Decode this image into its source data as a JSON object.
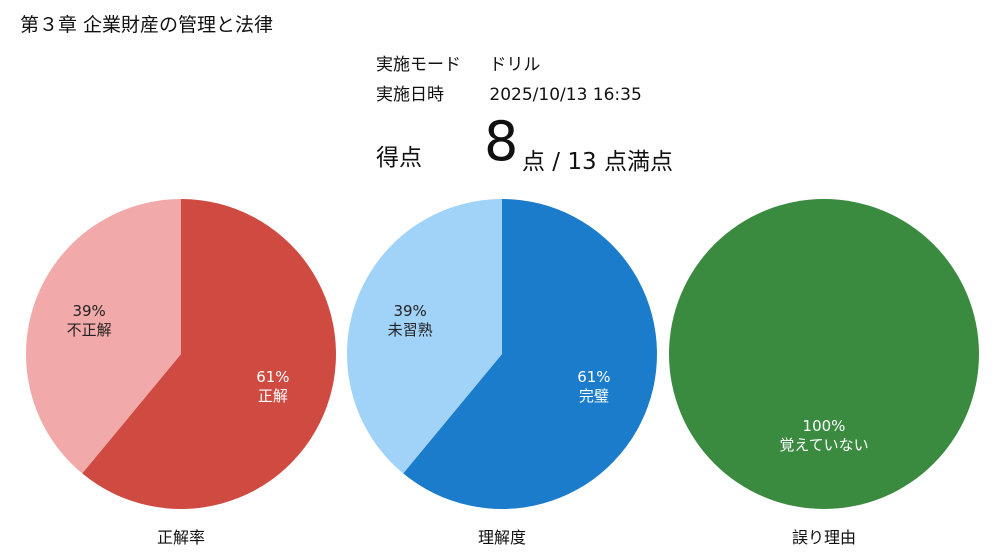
{
  "header": {
    "chapter_title": "第３章 企業財産の管理と法律"
  },
  "meta": {
    "mode_label": "実施モード",
    "mode_value": "ドリル",
    "date_label": "実施日時",
    "date_value": "2025/10/13 16:35"
  },
  "score": {
    "label": "得点",
    "value": "8",
    "suffix": "点 / 13 点満点"
  },
  "chart_data": [
    {
      "type": "pie",
      "title": "正解率",
      "slices": [
        {
          "label": "正解",
          "value": 61,
          "display": "61%",
          "color": "#cf4b42"
        },
        {
          "label": "不正解",
          "value": 39,
          "display": "39%",
          "color": "#f1aaa9"
        }
      ]
    },
    {
      "type": "pie",
      "title": "理解度",
      "slices": [
        {
          "label": "完璧",
          "value": 61,
          "display": "61%",
          "color": "#1a7ccb"
        },
        {
          "label": "未習熟",
          "value": 39,
          "display": "39%",
          "color": "#a1d2f8"
        }
      ]
    },
    {
      "type": "pie",
      "title": "誤り理由",
      "slices": [
        {
          "label": "覚えていない",
          "value": 100,
          "display": "100%",
          "color": "#3a8a40"
        }
      ]
    }
  ]
}
